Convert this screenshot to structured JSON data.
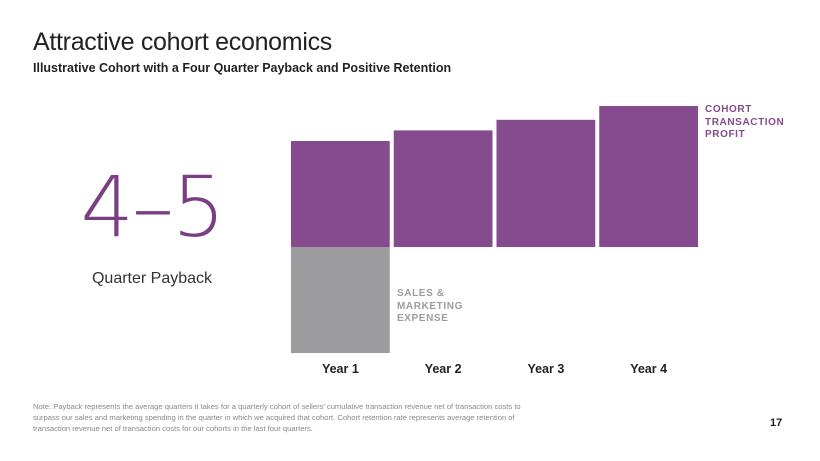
{
  "slide": {
    "title": "Attractive cohort economics",
    "subtitle": "Illustrative Cohort with a Four Quarter Payback and Positive Retention",
    "big_stat": "4–5",
    "big_stat_label": "Quarter Payback",
    "note": "Note: Payback represents the average quarters it takes for a quarterly cohort of sellers’ cumulative transaction revenue net of transaction costs to surpass our sales and marketing spending in the quarter in which we acquired that cohort. Cohort retention rate represents average retention of transaction revenue net of transaction costs for our cohorts in the last four quarters.",
    "page_number": "17"
  },
  "chart_data": {
    "type": "bar",
    "stacked": true,
    "categories": [
      "Year 1",
      "Year 2",
      "Year 3",
      "Year 4"
    ],
    "series": [
      {
        "name": "COHORT TRANSACTION PROFIT",
        "color": "#864a8e",
        "values": [
          1.0,
          1.1,
          1.2,
          1.33
        ]
      },
      {
        "name": "SALES & MARKETING EXPENSE",
        "color": "#9c9c9e",
        "values": [
          -1.0,
          null,
          null,
          null
        ]
      }
    ],
    "ylim": [
      -1.0,
      1.4
    ]
  }
}
